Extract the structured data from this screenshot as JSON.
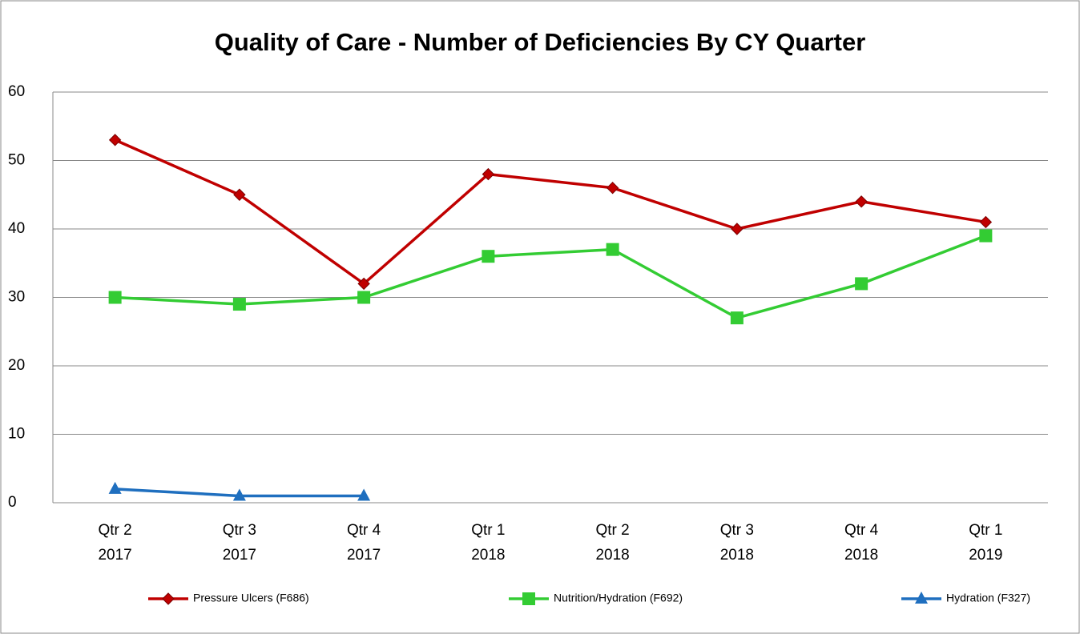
{
  "chart_data": {
    "type": "line",
    "title": "Quality of Care - Number of Deficiencies By CY Quarter",
    "categories": [
      [
        "Qtr 2",
        "2017"
      ],
      [
        "Qtr 3",
        "2017"
      ],
      [
        "Qtr 4",
        "2017"
      ],
      [
        "Qtr 1",
        "2018"
      ],
      [
        "Qtr 2",
        "2018"
      ],
      [
        "Qtr 3",
        "2018"
      ],
      [
        "Qtr 4",
        "2018"
      ],
      [
        "Qtr 1",
        "2019"
      ]
    ],
    "series": [
      {
        "name": "Pressure Ulcers (F686)",
        "color": "#c00000",
        "marker": "diamond",
        "values": [
          53,
          45,
          32,
          48,
          46,
          40,
          44,
          41
        ]
      },
      {
        "name": "Nutrition/Hydration (F692)",
        "color": "#33cc33",
        "marker": "square",
        "values": [
          30,
          29,
          30,
          36,
          37,
          27,
          32,
          39
        ]
      },
      {
        "name": "Hydration (F327)",
        "color": "#1f6fbf",
        "marker": "triangle",
        "values": [
          2,
          1,
          1,
          null,
          null,
          null,
          null,
          null
        ]
      }
    ],
    "ylim": [
      0,
      60
    ],
    "yticks": [
      0,
      10,
      20,
      30,
      40,
      50,
      60
    ],
    "grid": true,
    "legend": "bottom"
  }
}
